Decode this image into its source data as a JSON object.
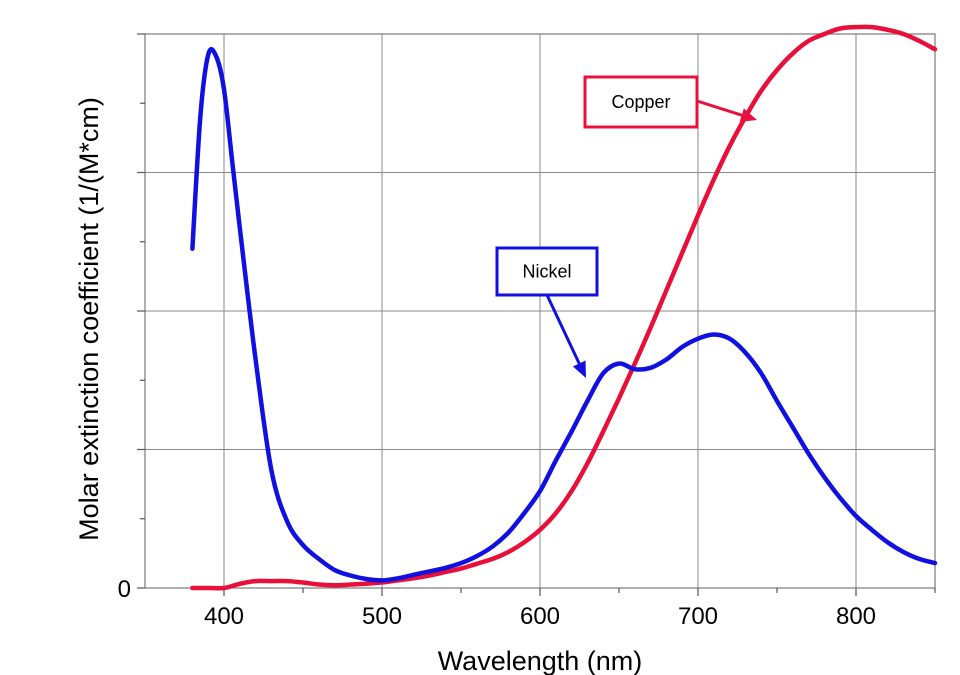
{
  "chart_data": {
    "type": "line",
    "title": "",
    "xlabel": "Wavelength (nm)",
    "ylabel": "Molar extinction coefficient (1/(M*cm)",
    "xlim": [
      350,
      850
    ],
    "ylim": [
      0,
      40
    ],
    "x_ticks": [
      400,
      500,
      600,
      700,
      800
    ],
    "x_tick_labels": [
      "400",
      "500",
      "600",
      "700",
      "800"
    ],
    "y_tick_labels": [
      {
        "value": 0,
        "label": "0"
      }
    ],
    "grid": true,
    "series": [
      {
        "name": "Nickel",
        "color": "#1010e0",
        "x": [
          380,
          385,
          390,
          395,
          400,
          405,
          410,
          420,
          430,
          440,
          450,
          460,
          470,
          480,
          490,
          500,
          510,
          520,
          530,
          540,
          550,
          560,
          570,
          580,
          590,
          600,
          610,
          620,
          630,
          640,
          650,
          660,
          670,
          680,
          690,
          700,
          710,
          720,
          730,
          740,
          750,
          760,
          770,
          780,
          790,
          800,
          810,
          820,
          830,
          840,
          850
        ],
        "y": [
          24.5,
          34,
          38.5,
          38.4,
          36,
          31,
          26,
          16.5,
          8.5,
          4.8,
          3.1,
          2.1,
          1.3,
          0.9,
          0.65,
          0.55,
          0.7,
          0.95,
          1.2,
          1.45,
          1.8,
          2.3,
          3.0,
          4.0,
          5.4,
          7.0,
          9.2,
          11.3,
          13.5,
          15.5,
          16.2,
          15.8,
          15.9,
          16.5,
          17.4,
          18.0,
          18.3,
          18.0,
          17.0,
          15.5,
          13.5,
          11.6,
          9.7,
          8.0,
          6.5,
          5.2,
          4.2,
          3.3,
          2.6,
          2.1,
          1.8
        ]
      },
      {
        "name": "Copper",
        "color": "#e8103a",
        "x": [
          380,
          390,
          400,
          410,
          420,
          430,
          440,
          450,
          460,
          470,
          480,
          490,
          500,
          510,
          520,
          530,
          540,
          550,
          560,
          570,
          580,
          590,
          600,
          610,
          620,
          630,
          640,
          650,
          660,
          670,
          680,
          690,
          700,
          710,
          720,
          730,
          740,
          750,
          760,
          770,
          780,
          790,
          800,
          810,
          820,
          830,
          840,
          850
        ],
        "y": [
          0,
          0,
          0,
          0.3,
          0.5,
          0.5,
          0.5,
          0.4,
          0.25,
          0.2,
          0.25,
          0.3,
          0.4,
          0.55,
          0.7,
          0.9,
          1.15,
          1.4,
          1.75,
          2.1,
          2.6,
          3.3,
          4.2,
          5.4,
          7.0,
          9.0,
          11.3,
          13.7,
          16.2,
          18.8,
          21.5,
          24.2,
          26.9,
          29.5,
          31.9,
          34.0,
          35.9,
          37.4,
          38.6,
          39.5,
          40.0,
          40.4,
          40.5,
          40.5,
          40.3,
          40.0,
          39.5,
          38.9
        ]
      }
    ],
    "annotations": [
      {
        "text": "Copper",
        "target_x": 755,
        "target_y": 37.8
      },
      {
        "text": "Nickel",
        "target_x": 640,
        "target_y": 14.8
      }
    ]
  }
}
